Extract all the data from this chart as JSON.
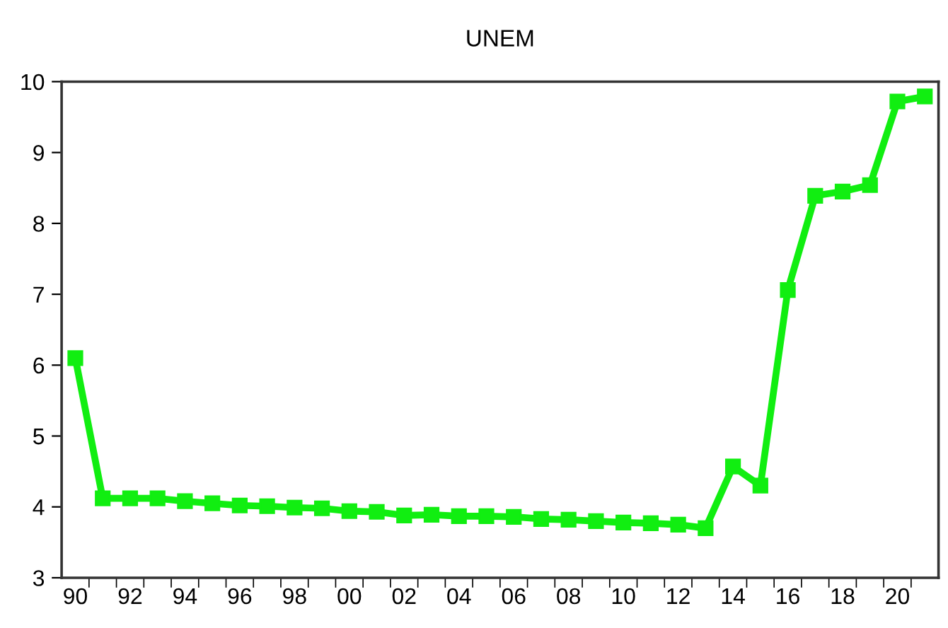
{
  "chart_data": {
    "type": "line",
    "title": "UNEM",
    "x": [
      1990,
      1991,
      1992,
      1993,
      1994,
      1995,
      1996,
      1997,
      1998,
      1999,
      2000,
      2001,
      2002,
      2003,
      2004,
      2005,
      2006,
      2007,
      2008,
      2009,
      2010,
      2011,
      2012,
      2013,
      2014,
      2015,
      2016,
      2017,
      2018,
      2019,
      2020,
      2021
    ],
    "series": [
      {
        "color": "#11ee11",
        "values": [
          6.1,
          4.12,
          4.12,
          4.12,
          4.08,
          4.05,
          4.02,
          4.01,
          3.99,
          3.98,
          3.94,
          3.93,
          3.88,
          3.89,
          3.87,
          3.87,
          3.86,
          3.83,
          3.82,
          3.8,
          3.78,
          3.77,
          3.75,
          3.7,
          4.57,
          4.3,
          7.06,
          8.39,
          8.45,
          8.54,
          9.72,
          9.79
        ]
      }
    ],
    "xlim": [
      1989.5,
      2021.5
    ],
    "xticks": [
      {
        "value": 1990,
        "label": "90"
      },
      {
        "value": 1992,
        "label": "92"
      },
      {
        "value": 1994,
        "label": "94"
      },
      {
        "value": 1996,
        "label": "96"
      },
      {
        "value": 1998,
        "label": "98"
      },
      {
        "value": 2000,
        "label": "00"
      },
      {
        "value": 2002,
        "label": "02"
      },
      {
        "value": 2004,
        "label": "04"
      },
      {
        "value": 2006,
        "label": "06"
      },
      {
        "value": 2008,
        "label": "08"
      },
      {
        "value": 2010,
        "label": "10"
      },
      {
        "value": 2012,
        "label": "12"
      },
      {
        "value": 2014,
        "label": "14"
      },
      {
        "value": 2016,
        "label": "16"
      },
      {
        "value": 2018,
        "label": "18"
      },
      {
        "value": 2020,
        "label": "20"
      },
      {
        "value": 1990.5,
        "label": null
      },
      {
        "value": 1991.5,
        "label": null
      },
      {
        "value": 1992.5,
        "label": null
      },
      {
        "value": 1993.5,
        "label": null
      },
      {
        "value": 1994.5,
        "label": null
      },
      {
        "value": 1995.5,
        "label": null
      },
      {
        "value": 1996.5,
        "label": null
      },
      {
        "value": 1997.5,
        "label": null
      },
      {
        "value": 1998.5,
        "label": null
      },
      {
        "value": 1999.5,
        "label": null
      },
      {
        "value": 2000.5,
        "label": null
      },
      {
        "value": 2001.5,
        "label": null
      },
      {
        "value": 2002.5,
        "label": null
      },
      {
        "value": 2003.5,
        "label": null
      },
      {
        "value": 2004.5,
        "label": null
      },
      {
        "value": 2005.5,
        "label": null
      },
      {
        "value": 2006.5,
        "label": null
      },
      {
        "value": 2007.5,
        "label": null
      },
      {
        "value": 2008.5,
        "label": null
      },
      {
        "value": 2009.5,
        "label": null
      },
      {
        "value": 2010.5,
        "label": null
      },
      {
        "value": 2011.5,
        "label": null
      },
      {
        "value": 2012.5,
        "label": null
      },
      {
        "value": 2013.5,
        "label": null
      },
      {
        "value": 2014.5,
        "label": null
      },
      {
        "value": 2015.5,
        "label": null
      },
      {
        "value": 2016.5,
        "label": null
      },
      {
        "value": 2017.5,
        "label": null
      },
      {
        "value": 2018.5,
        "label": null
      },
      {
        "value": 2019.5,
        "label": null
      },
      {
        "value": 2020.5,
        "label": null
      }
    ],
    "ylim": [
      3,
      10
    ],
    "yticks": [
      3,
      4,
      5,
      6,
      7,
      8,
      9,
      10
    ],
    "grid": false,
    "legend": false,
    "marker": "square",
    "line_style": "solid"
  }
}
